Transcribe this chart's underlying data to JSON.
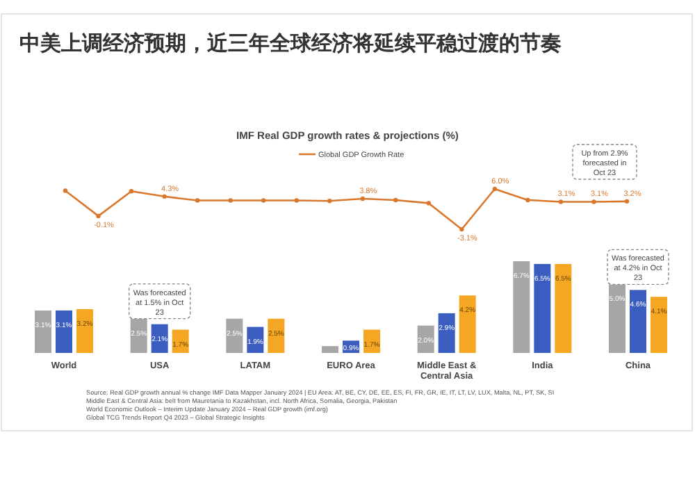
{
  "chart_data": [
    {
      "type": "line",
      "title": "中美上调经济预期，近三年全球经济将延续平稳过渡的节奏",
      "subtitle": "IMF Real GDP growth rates & projections (%)",
      "categories": [
        null,
        null,
        null,
        null,
        null,
        null,
        null,
        null,
        null,
        null,
        null,
        null,
        null,
        null,
        null,
        null,
        null,
        null
      ],
      "series": [
        {
          "name": "Global GDP Growth Rate",
          "color": "#d9782d",
          "values": [
            5.6,
            -0.1,
            5.5,
            4.3,
            3.4,
            3.4,
            3.4,
            3.4,
            3.3,
            3.8,
            3.5,
            2.8,
            -3.1,
            6.0,
            3.5,
            3.1,
            3.1,
            3.2
          ],
          "value_labels": [
            null,
            "-0.1%",
            null,
            "4.3%",
            null,
            null,
            null,
            null,
            null,
            "3.8%",
            null,
            null,
            "-3.1%",
            "6.0%",
            null,
            "3.1%",
            "3.1%",
            "3.2%"
          ]
        }
      ],
      "legend": "top",
      "marker": "circle",
      "annotations": [
        "Up from 2.9% forecasted in Oct 23"
      ]
    },
    {
      "type": "bar",
      "categories": [
        "World",
        "USA",
        "LATAM",
        "EURO Area",
        "Middle East & Central Asia",
        "India",
        "China"
      ],
      "series": [
        {
          "color": "#a6a6a6",
          "values": [
            3.1,
            2.5,
            2.5,
            0.5,
            2.0,
            6.7,
            5.0
          ],
          "value_labels": [
            "3.1%",
            "2.5%",
            "2.5%",
            null,
            "2.0%",
            "6.7%",
            "5.0%"
          ]
        },
        {
          "color": "#3a5dbf",
          "values": [
            3.1,
            2.1,
            1.9,
            0.9,
            2.9,
            6.5,
            4.6
          ],
          "value_labels": [
            "3.1%",
            "2.1%",
            "1.9%",
            "0.9%",
            "2.9%",
            "6.5%",
            "4.6%"
          ]
        },
        {
          "color": "#f5a623",
          "values": [
            3.2,
            1.7,
            2.5,
            1.7,
            4.2,
            6.5,
            4.1
          ],
          "value_labels": [
            "3.2%",
            "1.7%",
            "2.5%",
            "1.7%",
            "4.2%",
            "6.5%",
            "4.1%"
          ]
        }
      ],
      "annotations": [
        {
          "text": "Was forecasted at 1.5% in Oct 23",
          "x": "USA",
          "y": 2.1
        },
        {
          "text": "Was forecasted at 4.2% in Oct 23",
          "x": "China",
          "y": 4.6
        },
        "Source: Real GDP growth annual % change IMF Data Mapper January 2024 | EU Area: AT, BE, CY, DE, EE, ES, FI, FR, GR, IE, IT, LT, LV, LUX, Malta, NL, PT, SK, SI",
        "Middle East & Central Asia: belt from Mauretania to Kazakhstan, incl. North Africa, Somalia, Georgia, Pakistan",
        "World Economic Outlook – Interim Update January 2024 – Real GDP growth (imf.org)",
        "Global TCG Trends Report Q4 2023 – Global Strategic Insights"
      ]
    }
  ]
}
